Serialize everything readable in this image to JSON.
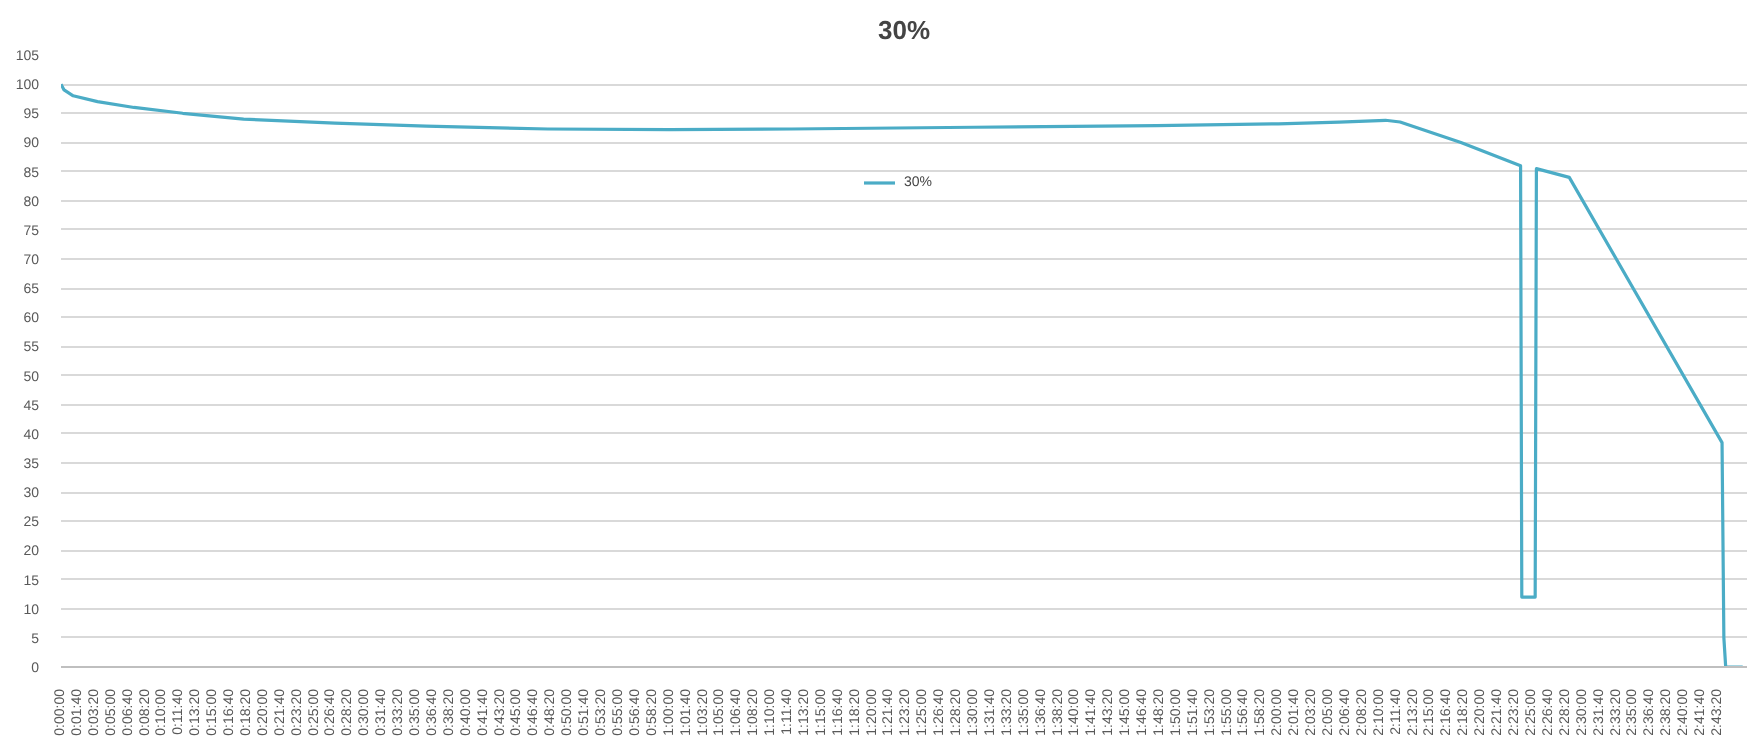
{
  "chart_data": {
    "type": "line",
    "title": "30%",
    "x": [
      0,
      0.005,
      0.02,
      0.06,
      0.12,
      0.2,
      0.3,
      0.45,
      0.6,
      0.8,
      1.0,
      1.2,
      1.5,
      1.8,
      2.0,
      2.1,
      2.176,
      2.2,
      2.3,
      2.398,
      2.4,
      2.422,
      2.424,
      2.478,
      2.729,
      2.732,
      2.735,
      2.763
    ],
    "series": [
      {
        "name": "30%",
        "color": "#4bacc6",
        "values": [
          100,
          99,
          98,
          97,
          96,
          95,
          94,
          93.3,
          92.8,
          92.3,
          92.2,
          92.3,
          92.6,
          92.9,
          93.2,
          93.5,
          93.8,
          93.5,
          90,
          86,
          12,
          12,
          85.5,
          84,
          38.5,
          5,
          0,
          0
        ]
      }
    ],
    "xlim": [
      0,
      2.77
    ],
    "ylim": [
      0,
      105
    ],
    "yticks": [
      0,
      5,
      10,
      15,
      20,
      25,
      30,
      35,
      40,
      45,
      50,
      55,
      60,
      65,
      70,
      75,
      80,
      85,
      90,
      95,
      100,
      105
    ],
    "xticks": [
      {
        "value": 0,
        "label": "0:00:00"
      },
      {
        "value": 0.0278,
        "label": "0:01:40"
      },
      {
        "value": 0.0556,
        "label": "0:03:20"
      },
      {
        "value": 0.0833,
        "label": "0:05:00"
      },
      {
        "value": 0.1111,
        "label": "0:06:40"
      },
      {
        "value": 0.1389,
        "label": "0:08:20"
      },
      {
        "value": 0.1667,
        "label": "0:10:00"
      },
      {
        "value": 0.1944,
        "label": "0:11:40"
      },
      {
        "value": 0.2222,
        "label": "0:13:20"
      },
      {
        "value": 0.25,
        "label": "0:15:00"
      },
      {
        "value": 0.2778,
        "label": "0:16:40"
      },
      {
        "value": 0.3056,
        "label": "0:18:20"
      },
      {
        "value": 0.3333,
        "label": "0:20:00"
      },
      {
        "value": 0.3611,
        "label": "0:21:40"
      },
      {
        "value": 0.3889,
        "label": "0:23:20"
      },
      {
        "value": 0.4167,
        "label": "0:25:00"
      },
      {
        "value": 0.4444,
        "label": "0:26:40"
      },
      {
        "value": 0.4722,
        "label": "0:28:20"
      },
      {
        "value": 0.5,
        "label": "0:30:00"
      },
      {
        "value": 0.5278,
        "label": "0:31:40"
      },
      {
        "value": 0.5556,
        "label": "0:33:20"
      },
      {
        "value": 0.5833,
        "label": "0:35:00"
      },
      {
        "value": 0.6111,
        "label": "0:36:40"
      },
      {
        "value": 0.6389,
        "label": "0:38:20"
      },
      {
        "value": 0.6667,
        "label": "0:40:00"
      },
      {
        "value": 0.6944,
        "label": "0:41:40"
      },
      {
        "value": 0.7222,
        "label": "0:43:20"
      },
      {
        "value": 0.75,
        "label": "0:45:00"
      },
      {
        "value": 0.7778,
        "label": "0:46:40"
      },
      {
        "value": 0.8056,
        "label": "0:48:20"
      },
      {
        "value": 0.8333,
        "label": "0:50:00"
      },
      {
        "value": 0.8611,
        "label": "0:51:40"
      },
      {
        "value": 0.8889,
        "label": "0:53:20"
      },
      {
        "value": 0.9167,
        "label": "0:55:00"
      },
      {
        "value": 0.9444,
        "label": "0:56:40"
      },
      {
        "value": 0.9722,
        "label": "0:58:20"
      },
      {
        "value": 1.0,
        "label": "1:00:00"
      },
      {
        "value": 1.0278,
        "label": "1:01:40"
      },
      {
        "value": 1.0556,
        "label": "1:03:20"
      },
      {
        "value": 1.0833,
        "label": "1:05:00"
      },
      {
        "value": 1.1111,
        "label": "1:06:40"
      },
      {
        "value": 1.1389,
        "label": "1:08:20"
      },
      {
        "value": 1.1667,
        "label": "1:10:00"
      },
      {
        "value": 1.1944,
        "label": "1:11:40"
      },
      {
        "value": 1.2222,
        "label": "1:13:20"
      },
      {
        "value": 1.25,
        "label": "1:15:00"
      },
      {
        "value": 1.2778,
        "label": "1:16:40"
      },
      {
        "value": 1.3056,
        "label": "1:18:20"
      },
      {
        "value": 1.3333,
        "label": "1:20:00"
      },
      {
        "value": 1.3611,
        "label": "1:21:40"
      },
      {
        "value": 1.3889,
        "label": "1:23:20"
      },
      {
        "value": 1.4167,
        "label": "1:25:00"
      },
      {
        "value": 1.4444,
        "label": "1:26:40"
      },
      {
        "value": 1.4722,
        "label": "1:28:20"
      },
      {
        "value": 1.5,
        "label": "1:30:00"
      },
      {
        "value": 1.5278,
        "label": "1:31:40"
      },
      {
        "value": 1.5556,
        "label": "1:33:20"
      },
      {
        "value": 1.5833,
        "label": "1:35:00"
      },
      {
        "value": 1.6111,
        "label": "1:36:40"
      },
      {
        "value": 1.6389,
        "label": "1:38:20"
      },
      {
        "value": 1.6667,
        "label": "1:40:00"
      },
      {
        "value": 1.6944,
        "label": "1:41:40"
      },
      {
        "value": 1.7222,
        "label": "1:43:20"
      },
      {
        "value": 1.75,
        "label": "1:45:00"
      },
      {
        "value": 1.7778,
        "label": "1:46:40"
      },
      {
        "value": 1.8056,
        "label": "1:48:20"
      },
      {
        "value": 1.8333,
        "label": "1:50:00"
      },
      {
        "value": 1.8611,
        "label": "1:51:40"
      },
      {
        "value": 1.8889,
        "label": "1:53:20"
      },
      {
        "value": 1.9167,
        "label": "1:55:00"
      },
      {
        "value": 1.9444,
        "label": "1:56:40"
      },
      {
        "value": 1.9722,
        "label": "1:58:20"
      },
      {
        "value": 2.0,
        "label": "2:00:00"
      },
      {
        "value": 2.0278,
        "label": "2:01:40"
      },
      {
        "value": 2.0556,
        "label": "2:03:20"
      },
      {
        "value": 2.0833,
        "label": "2:05:00"
      },
      {
        "value": 2.1111,
        "label": "2:06:40"
      },
      {
        "value": 2.1389,
        "label": "2:08:20"
      },
      {
        "value": 2.1667,
        "label": "2:10:00"
      },
      {
        "value": 2.1944,
        "label": "2:11:40"
      },
      {
        "value": 2.2222,
        "label": "2:13:20"
      },
      {
        "value": 2.25,
        "label": "2:15:00"
      },
      {
        "value": 2.2778,
        "label": "2:16:40"
      },
      {
        "value": 2.3056,
        "label": "2:18:20"
      },
      {
        "value": 2.3333,
        "label": "2:20:00"
      },
      {
        "value": 2.3611,
        "label": "2:21:40"
      },
      {
        "value": 2.3889,
        "label": "2:23:20"
      },
      {
        "value": 2.4167,
        "label": "2:25:00"
      },
      {
        "value": 2.4444,
        "label": "2:26:40"
      },
      {
        "value": 2.4722,
        "label": "2:28:20"
      },
      {
        "value": 2.5,
        "label": "2:30:00"
      },
      {
        "value": 2.5278,
        "label": "2:31:40"
      },
      {
        "value": 2.5556,
        "label": "2:33:20"
      },
      {
        "value": 2.5833,
        "label": "2:35:00"
      },
      {
        "value": 2.6111,
        "label": "2:36:40"
      },
      {
        "value": 2.6389,
        "label": "2:38:20"
      },
      {
        "value": 2.6667,
        "label": "2:40:00"
      },
      {
        "value": 2.6944,
        "label": "2:41:40"
      },
      {
        "value": 2.7222,
        "label": "2:43:20"
      }
    ],
    "grid": "y",
    "legend": "top",
    "marker": "none",
    "line_style": "solid"
  }
}
